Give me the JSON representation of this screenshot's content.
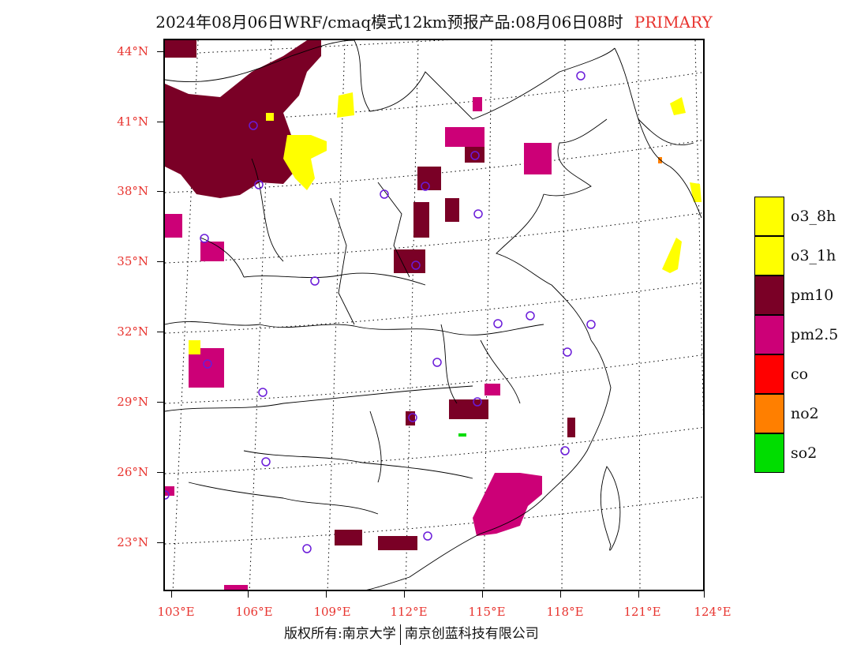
{
  "header": {
    "title": "2024年08月06日WRF/cmaq模式12km预报产品:08月06日08时",
    "category": "PRIMARY"
  },
  "map": {
    "lat_labels": [
      "44°N",
      "41°N",
      "38°N",
      "35°N",
      "32°N",
      "29°N",
      "26°N",
      "23°N"
    ],
    "lon_labels": [
      "103°E",
      "106°E",
      "109°E",
      "112°E",
      "115°E",
      "118°E",
      "121°E",
      "124°E"
    ]
  },
  "legend": {
    "items": [
      {
        "label": "o3_8h",
        "color": "#ffff00"
      },
      {
        "label": "o3_1h",
        "color": "#ffff00"
      },
      {
        "label": "pm10",
        "color": "#7a0026"
      },
      {
        "label": "pm2.5",
        "color": "#cc0077"
      },
      {
        "label": "co",
        "color": "#ff0000"
      },
      {
        "label": "no2",
        "color": "#ff7f00"
      },
      {
        "label": "so2",
        "color": "#00dd00"
      }
    ]
  },
  "footer": {
    "left": "版权所有:南京大学",
    "right": "南京创蓝科技有限公司"
  }
}
